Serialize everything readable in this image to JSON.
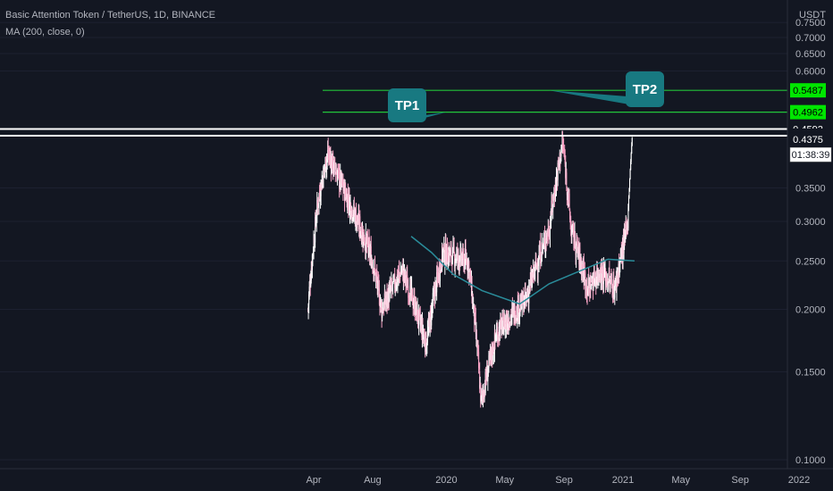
{
  "legend": {
    "symbol_line": "Basic Attention Token / TetherUS, 1D, BINANCE",
    "indicator_line": "MA (200, close, 0)"
  },
  "colors": {
    "background": "#131722",
    "up_candle": "#ffffff",
    "down_candle": "#f7a3c4",
    "ma_line": "#2a8c9a",
    "tp_line": "#22c33a",
    "tp_tag": "#00e600",
    "callout": "#187981",
    "axis_text": "#b2b5be"
  },
  "chart_data": {
    "type": "line",
    "title": "Basic Attention Token / TetherUS, 1D, BINANCE",
    "y_unit": "USDT",
    "ylim": [
      0.09,
      0.76
    ],
    "y_ticks": [
      0.1,
      0.15,
      0.2,
      0.25,
      0.3,
      0.35,
      0.6,
      0.65,
      0.7,
      0.75
    ],
    "y_tick_labels": [
      "0.1000",
      "0.1500",
      "0.2000",
      "0.2500",
      "0.3000",
      "0.3500",
      "0.6000",
      "0.6500",
      "0.7000",
      "0.7500"
    ],
    "x_labels": [
      "Apr",
      "Aug",
      "2020",
      "May",
      "Sep",
      "2021",
      "May",
      "Sep",
      "2022"
    ],
    "x_label_dates": [
      "2019-04-01",
      "2019-08-01",
      "2020-01-01",
      "2020-05-01",
      "2020-09-01",
      "2021-01-01",
      "2021-05-01",
      "2021-09-01",
      "2022-01-01"
    ],
    "series": [
      {
        "kind": "candles",
        "dates": [
          "2019-03-20",
          "2019-04-10",
          "2019-04-30",
          "2019-06-01",
          "2019-07-01",
          "2019-08-01",
          "2019-08-20",
          "2019-10-01",
          "2019-11-20",
          "2019-12-25",
          "2020-02-15",
          "2020-03-13",
          "2020-04-15",
          "2020-06-15",
          "2020-08-01",
          "2020-08-29",
          "2020-09-15",
          "2020-10-20",
          "2020-11-15",
          "2020-12-15",
          "2021-01-10",
          "2021-01-20"
        ],
        "close": [
          0.2,
          0.33,
          0.41,
          0.35,
          0.3,
          0.25,
          0.2,
          0.24,
          0.17,
          0.26,
          0.25,
          0.13,
          0.18,
          0.21,
          0.29,
          0.43,
          0.29,
          0.22,
          0.24,
          0.22,
          0.29,
          0.44
        ]
      },
      {
        "kind": "ma",
        "name": "MA (200, close, 0)",
        "dates": [
          "2019-10-20",
          "2019-12-01",
          "2020-01-15",
          "2020-03-15",
          "2020-06-01",
          "2020-08-01",
          "2020-10-01",
          "2020-12-01",
          "2021-01-25"
        ],
        "values": [
          0.28,
          0.26,
          0.235,
          0.218,
          0.205,
          0.225,
          0.238,
          0.252,
          0.25
        ]
      }
    ],
    "horizontal_lines": [
      {
        "label": "0.5487",
        "value": 0.5487,
        "color": "#22c33a"
      },
      {
        "label": "0.4962",
        "value": 0.4962,
        "color": "#22c33a"
      },
      {
        "label": "0.4592",
        "value": 0.4592,
        "color": "#ffffff"
      },
      {
        "label": "0.4452",
        "value": 0.4452,
        "color": "#ffffff"
      }
    ],
    "price_tags": [
      {
        "label": "0.4375",
        "value": 0.4375
      },
      {
        "label": "01:38:39",
        "value": 0.408
      }
    ],
    "callouts": [
      {
        "label": "TP1",
        "target_date": "2020-01-01",
        "target_value": 0.4962
      },
      {
        "label": "TP2",
        "target_date": "2020-08-01",
        "target_value": 0.5487
      }
    ]
  }
}
